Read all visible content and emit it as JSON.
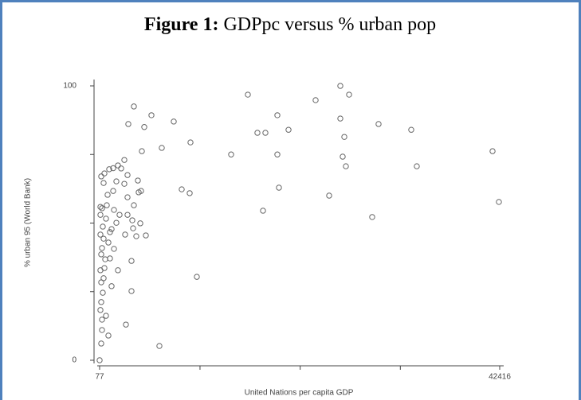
{
  "chart_data": {
    "type": "scatter",
    "title_prefix": "Figure 1:",
    "title": "GDPpc versus % urban pop",
    "xlabel": "United Nations per capita GDP",
    "ylabel": "% urban 95 (World Bank)",
    "x": [
      25548,
      15764,
      26476,
      22934,
      3703,
      5559,
      3113,
      7921,
      4800,
      18885,
      25548,
      20066,
      16776,
      17620,
      29595,
      33053,
      25970,
      9692,
      6655,
      4547,
      13993,
      18885,
      41658,
      25801,
      2691,
      26138,
      33643,
      2017,
      1511,
      1089,
      583,
      246,
      4125,
      4462,
      4210,
      8764,
      9608,
      19054,
      24367,
      42332,
      17367,
      28920,
      3029,
      2691,
      1511,
      3029,
      836,
      330,
      1596,
      2186,
      3029,
      752,
      1848,
      3535,
      4378,
      3619,
      4969,
      2775,
      1342,
      499,
      1596,
      330,
      3450,
      1173,
      2017,
      583,
      499,
      1342,
      246,
      3450,
      752,
      330,
      2860,
      1005,
      246,
      6402,
      77,
      10366,
      161,
      161,
      414,
      161,
      246,
      161,
      246,
      161,
      330,
      414,
      668,
      1005,
      1173,
      921,
      499,
      1848,
      2354,
      3703,
      3956
    ],
    "values": [
      100,
      96.8,
      96.8,
      94.8,
      92.5,
      89.3,
      86.1,
      87,
      85,
      89.3,
      88.1,
      84,
      82.9,
      82.9,
      86.1,
      84,
      81.4,
      79.4,
      77.4,
      76.2,
      75,
      75,
      76.2,
      74.2,
      73,
      70.7,
      70.7,
      71,
      70,
      69.6,
      68.1,
      67,
      65.5,
      61.7,
      61.2,
      62.3,
      60.9,
      62.9,
      60,
      57.7,
      54.5,
      52.2,
      67.5,
      64.3,
      61.7,
      59.4,
      56.5,
      55.4,
      54.8,
      53,
      53,
      51.6,
      50.1,
      51,
      49.9,
      48.1,
      45.5,
      45.8,
      47.8,
      44.3,
      40.6,
      40.9,
      36.2,
      37.1,
      32.8,
      33.6,
      29.9,
      27,
      21.2,
      25.2,
      16.2,
      14.8,
      13,
      9,
      6.1,
      5.2,
      0,
      30.4,
      55.9,
      53,
      48.7,
      45.8,
      38.6,
      32.8,
      28.4,
      18.3,
      11,
      24.6,
      36.8,
      42.9,
      46.7,
      60.3,
      64.6,
      65.2,
      69.9,
      56.5,
      45.2
    ],
    "xlim": [
      77,
      42416
    ],
    "ylim": [
      0,
      100
    ],
    "xticks": [
      77,
      42416
    ],
    "yticks": [
      0,
      100
    ],
    "xminorticks": [
      10700,
      21300,
      31900
    ],
    "yminorticks": [
      25,
      50,
      75
    ],
    "color": "#666666"
  }
}
